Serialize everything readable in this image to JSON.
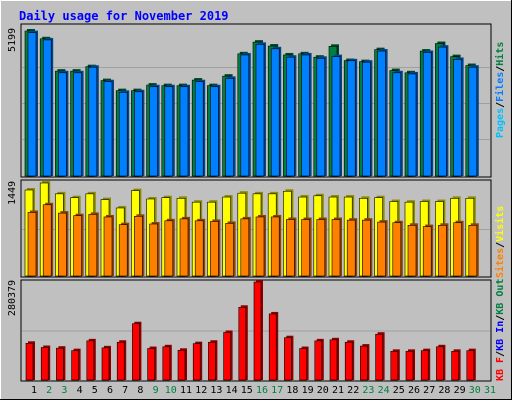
{
  "chart_data": [
    {
      "type": "bar",
      "panel": "hits_files_pages",
      "title": "Daily usage for November 2019",
      "categories": [
        "1",
        "2",
        "3",
        "4",
        "5",
        "6",
        "7",
        "8",
        "9",
        "10",
        "11",
        "12",
        "13",
        "14",
        "15",
        "16",
        "17",
        "18",
        "19",
        "20",
        "21",
        "22",
        "23",
        "24",
        "25",
        "26",
        "27",
        "28",
        "29",
        "30",
        "31"
      ],
      "ylabel_max": "5199",
      "ylim": [
        0,
        5199
      ],
      "legend_words": [
        "Pages",
        "Files",
        "Hits"
      ],
      "series": [
        {
          "name": "Hits",
          "color": "#008040",
          "values": [
            5199,
            4920,
            3760,
            3760,
            3920,
            3420,
            3060,
            3060,
            3260,
            3240,
            3240,
            3440,
            3240,
            3580,
            4380,
            4800,
            4660,
            4340,
            4380,
            4260,
            4650,
            4140,
            4100,
            4530,
            3780,
            3700,
            4480,
            4750,
            4280,
            3960,
            null
          ]
        },
        {
          "name": "Files",
          "color": "#0080ff",
          "values": [
            5140,
            4880,
            3700,
            3700,
            3900,
            3380,
            3000,
            3020,
            3200,
            3200,
            3200,
            3380,
            3200,
            3500,
            4340,
            4720,
            4560,
            4260,
            4340,
            4220,
            4280,
            4130,
            4080,
            4480,
            3700,
            3660,
            4430,
            4620,
            4180,
            3900,
            null
          ]
        },
        {
          "name": "Pages",
          "color": "#00c0ff",
          "values": [
            null,
            null,
            null,
            null,
            null,
            null,
            null,
            null,
            null,
            null,
            null,
            null,
            null,
            null,
            null,
            null,
            null,
            null,
            null,
            null,
            null,
            null,
            null,
            null,
            null,
            null,
            null,
            null,
            null,
            null,
            null
          ]
        }
      ]
    },
    {
      "type": "bar",
      "panel": "visits_sites",
      "categories": [
        "1",
        "2",
        "3",
        "4",
        "5",
        "6",
        "7",
        "8",
        "9",
        "10",
        "11",
        "12",
        "13",
        "14",
        "15",
        "16",
        "17",
        "18",
        "19",
        "20",
        "21",
        "22",
        "23",
        "24",
        "25",
        "26",
        "27",
        "28",
        "29",
        "30",
        "31"
      ],
      "ylabel_max": "1449",
      "ylim": [
        0,
        1449
      ],
      "legend_words": [
        "Sites",
        "/",
        "Visits"
      ],
      "series": [
        {
          "name": "Visits",
          "color": "#ffff00",
          "values": [
            1340,
            1449,
            1280,
            1220,
            1280,
            1190,
            1060,
            1330,
            1200,
            1220,
            1210,
            1150,
            1150,
            1230,
            1290,
            1280,
            1280,
            1320,
            1230,
            1250,
            1230,
            1230,
            1210,
            1220,
            1160,
            1150,
            1160,
            1160,
            1210,
            1210,
            null
          ]
        },
        {
          "name": "Sites",
          "color": "#ff8000",
          "values": [
            990,
            1110,
            980,
            940,
            960,
            920,
            800,
            930,
            810,
            860,
            890,
            860,
            850,
            820,
            890,
            920,
            920,
            880,
            880,
            880,
            880,
            870,
            870,
            840,
            830,
            790,
            770,
            790,
            830,
            790,
            null
          ]
        }
      ]
    },
    {
      "type": "bar",
      "panel": "kbytes",
      "categories": [
        "1",
        "2",
        "3",
        "4",
        "5",
        "6",
        "7",
        "8",
        "9",
        "10",
        "11",
        "12",
        "13",
        "14",
        "15",
        "16",
        "17",
        "18",
        "19",
        "20",
        "21",
        "22",
        "23",
        "24",
        "25",
        "26",
        "27",
        "28",
        "29",
        "30",
        "31"
      ],
      "ylabel_max": "280379",
      "ylim": [
        0,
        280379
      ],
      "legend_words": [
        "KB F",
        "/",
        "KB In",
        "/",
        "KB Out"
      ],
      "series": [
        {
          "name": "KB F",
          "color": "#ff0000",
          "values": [
            105000,
            93000,
            91000,
            84000,
            112000,
            92000,
            108000,
            161000,
            90000,
            95000,
            85000,
            104000,
            108000,
            136000,
            208000,
            280379,
            189000,
            121000,
            90000,
            112000,
            115000,
            108000,
            97000,
            131000,
            82000,
            82000,
            84000,
            95000,
            82000,
            84000,
            null
          ]
        }
      ]
    }
  ],
  "xaxis_label_colors": {
    "weekday": "#000000",
    "weekend": "#008040"
  },
  "weekend_days": [
    "2",
    "3",
    "9",
    "10",
    "16",
    "17",
    "23",
    "24",
    "30",
    "31"
  ],
  "colors": {
    "background": "#c0c0c0",
    "title": "#0000ff",
    "panel_border": "#000000"
  }
}
